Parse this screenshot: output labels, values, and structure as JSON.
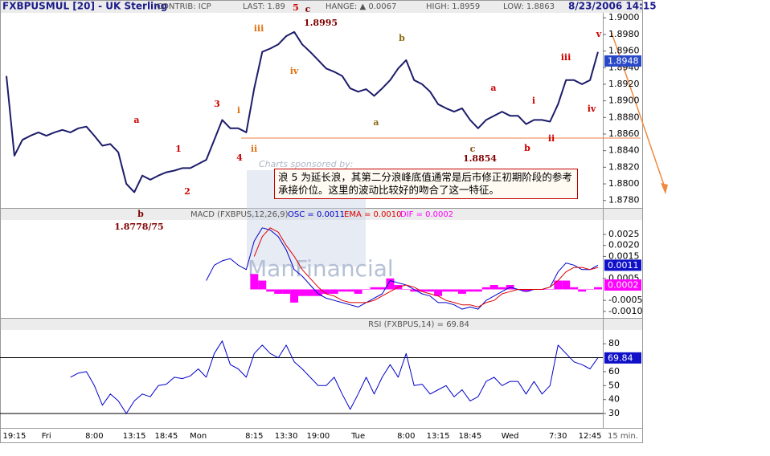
{
  "chart_data": [
    {
      "type": "line",
      "title": "FXBPUSMUL [20] - UK Sterling",
      "header": [
        "CONTRIB: ICP",
        "LAST: 1.89",
        "HANGE: ▲ 0.0067",
        "HIGH: 1.8959",
        "LOW: 1.8863",
        "8/23/2006 14:15"
      ],
      "color": "#1c1c6b",
      "values": [
        1.893,
        1.8834,
        1.8853,
        1.8858,
        1.8862,
        1.8858,
        1.8862,
        1.8865,
        1.8862,
        1.8867,
        1.8869,
        1.8858,
        1.8846,
        1.8848,
        1.8838,
        1.88,
        1.879,
        1.881,
        1.8805,
        1.881,
        1.8814,
        1.8816,
        1.8819,
        1.8819,
        1.8824,
        1.8829,
        1.8853,
        1.8877,
        1.8867,
        1.8867,
        1.8862,
        1.8915,
        1.8959,
        1.8963,
        1.8968,
        1.8978,
        1.8983,
        1.8968,
        1.8959,
        1.8949,
        1.8939,
        1.8935,
        1.893,
        1.8915,
        1.8911,
        1.8914,
        1.8906,
        1.8915,
        1.8925,
        1.8939,
        1.8949,
        1.8925,
        1.892,
        1.8911,
        1.8896,
        1.8891,
        1.8887,
        1.8891,
        1.8877,
        1.8867,
        1.8877,
        1.8882,
        1.8887,
        1.8882,
        1.8882,
        1.8872,
        1.8877,
        1.8877,
        1.8875,
        1.8896,
        1.8925,
        1.8925,
        1.892,
        1.8925,
        1.8959
      ],
      "current": 1.8948,
      "current_color": "#2848c8",
      "ylim": [
        1.8772,
        1.9006
      ],
      "yticks": [
        {
          "value": 1.9,
          "label": "1.9000"
        },
        {
          "value": 1.898,
          "label": "1.8980"
        },
        {
          "value": 1.896,
          "label": "1.8960"
        },
        {
          "value": 1.894,
          "label": "1.8940"
        },
        {
          "value": 1.892,
          "label": "1.8920"
        },
        {
          "value": 1.89,
          "label": "1.8900"
        },
        {
          "value": 1.888,
          "label": "1.8880"
        },
        {
          "value": 1.886,
          "label": "1.8860"
        },
        {
          "value": 1.884,
          "label": "1.8840"
        },
        {
          "value": 1.882,
          "label": "1.8820"
        },
        {
          "value": 1.88,
          "label": "1.8800"
        },
        {
          "value": 1.878,
          "label": "1.8780"
        }
      ],
      "annotations": [
        {
          "text": "a",
          "color": "#cc0000"
        },
        {
          "text": "b",
          "color": "#800000"
        },
        {
          "text": "1.8778/75",
          "color": "#800000"
        },
        {
          "text": "1",
          "color": "#cc0000"
        },
        {
          "text": "2",
          "color": "#cc0000"
        },
        {
          "text": "3",
          "color": "#cc0000"
        },
        {
          "text": "4",
          "color": "#cc0000"
        },
        {
          "text": "i",
          "color": "#e07010"
        },
        {
          "text": "ii",
          "color": "#e07010"
        },
        {
          "text": "iii",
          "color": "#e07010"
        },
        {
          "text": "iv",
          "color": "#e07010"
        },
        {
          "text": "5",
          "color": "#cc0000"
        },
        {
          "text": "c",
          "color": "#800000"
        },
        {
          "text": "1.8995",
          "color": "#800000"
        },
        {
          "text": "b",
          "color": "#8a6a10"
        },
        {
          "text": "a",
          "color": "#8a6a10"
        },
        {
          "text": "a",
          "color": "#cc0000"
        },
        {
          "text": "c",
          "color": "#8a4a10"
        },
        {
          "text": "1.8854",
          "color": "#800000"
        },
        {
          "text": "i",
          "color": "#cc0000"
        },
        {
          "text": "b",
          "color": "#cc0000"
        },
        {
          "text": "ii",
          "color": "#cc0000"
        },
        {
          "text": "iii",
          "color": "#cc0000"
        },
        {
          "text": "iv",
          "color": "#cc0000"
        },
        {
          "text": "v",
          "color": "#cc0000"
        }
      ],
      "note": "浪 5 为延长浪，其第二分浪峰底值通常是后市修正初期阶段的参考承接价位。这里的波动比较好的吻合了这一特征。",
      "watermark": [
        "Charts sponsored by:",
        "ManFinancial"
      ]
    },
    {
      "type": "line",
      "title": "MACD (FXBPUS,12,26,9)",
      "series": [
        {
          "name": "OSC = 0.0011",
          "color": "#0000cc",
          "current": 0.0011,
          "values": [
            null,
            null,
            null,
            null,
            null,
            null,
            null,
            null,
            null,
            null,
            null,
            null,
            null,
            null,
            null,
            null,
            null,
            null,
            null,
            null,
            null,
            null,
            null,
            null,
            null,
            0.0004,
            0.0011,
            0.0013,
            0.0014,
            0.0011,
            0.0009,
            0.0022,
            0.0028,
            0.0027,
            0.0024,
            0.0018,
            0.0009,
            0.0006,
            0.0002,
            -0.0002,
            -0.0004,
            -0.0005,
            -0.0006,
            -0.0007,
            -0.0008,
            -0.0006,
            -0.0004,
            -0.0002,
            0.0004,
            0.0003,
            0.0002,
            0,
            -0.0002,
            -0.0003,
            -0.0006,
            -0.0006,
            -0.0007,
            -0.0009,
            -0.0008,
            -0.0009,
            -0.0005,
            -0.0003,
            -0.0001,
            0.0001,
            0,
            -0.0001,
            0,
            0,
            0.0001,
            0.0008,
            0.0012,
            0.0011,
            0.0009,
            0.0009,
            0.0011
          ]
        },
        {
          "name": "EMA = 0.0010",
          "color": "#dd0000",
          "values": [
            null,
            null,
            null,
            null,
            null,
            null,
            null,
            null,
            null,
            null,
            null,
            null,
            null,
            null,
            null,
            null,
            null,
            null,
            null,
            null,
            null,
            null,
            null,
            null,
            null,
            null,
            null,
            null,
            null,
            null,
            null,
            0.0015,
            0.0024,
            0.0028,
            0.0026,
            0.002,
            0.0015,
            0.0009,
            0.0005,
            0.0001,
            -0.0002,
            -0.0003,
            -0.0005,
            -0.0006,
            -0.0006,
            -0.0006,
            -0.0005,
            -0.0003,
            -0.0001,
            0.0001,
            0.0002,
            0.0001,
            -0.0001,
            -0.0002,
            -0.0003,
            -0.0005,
            -0.0006,
            -0.0007,
            -0.0007,
            -0.0008,
            -0.0006,
            -0.0005,
            -0.0002,
            -0.0001,
            0,
            0,
            0,
            0,
            0.0001,
            0.0004,
            0.0008,
            0.001,
            0.001,
            0.0009,
            0.001
          ]
        },
        {
          "name": "DIF = 0.0002",
          "color": "#ff00ff",
          "style": "histogram",
          "current": 0.0002,
          "values": [
            null,
            null,
            null,
            null,
            null,
            null,
            null,
            null,
            null,
            null,
            null,
            null,
            null,
            null,
            null,
            null,
            null,
            null,
            null,
            null,
            null,
            null,
            null,
            null,
            null,
            null,
            null,
            null,
            null,
            null,
            null,
            0.0007,
            0.0004,
            -0.0001,
            -0.0002,
            -0.0002,
            -0.0006,
            -0.0003,
            -0.0003,
            -0.0003,
            -0.0002,
            -0.0002,
            -0.0001,
            -0.0001,
            -0.0002,
            0,
            0.0001,
            0.0001,
            0.0005,
            0.0002,
            0,
            -0.0001,
            -0.0001,
            -0.0001,
            -0.0003,
            -0.0001,
            -0.0001,
            -0.0002,
            -0.0001,
            -0.0001,
            0.0001,
            0.0002,
            0.0001,
            0.0002,
            0,
            -0.0001,
            0,
            0,
            0,
            0.0004,
            0.0004,
            0.0001,
            -0.0001,
            0,
            0.0001
          ]
        }
      ],
      "ylim": [
        -0.00126,
        0.00312
      ],
      "yticks": [
        {
          "value": 0.0025,
          "label": "0.0025"
        },
        {
          "value": 0.002,
          "label": "0.0020"
        },
        {
          "value": 0.0015,
          "label": "0.0015"
        },
        {
          "value": 0.0005,
          "label": "0.0005"
        },
        {
          "value": -0.0005,
          "label": "-0.0005"
        },
        {
          "value": -0.001,
          "label": "-0.0010"
        }
      ]
    },
    {
      "type": "line",
      "title": "RSI (FXBPUS,14) = 69.84",
      "series": [
        {
          "color": "#0000cc",
          "current": 69.84,
          "values": [
            null,
            null,
            null,
            null,
            null,
            null,
            null,
            null,
            56,
            59,
            60,
            50,
            36,
            44,
            39,
            30,
            39,
            44,
            42,
            50,
            51,
            56,
            55,
            57,
            62,
            56,
            73,
            82,
            65,
            62,
            56,
            73,
            79,
            73,
            70,
            79,
            67,
            62,
            56,
            50,
            50,
            56,
            44,
            33,
            44,
            56,
            44,
            56,
            65,
            56,
            73,
            50,
            51,
            44,
            47,
            50,
            42,
            47,
            39,
            42,
            53,
            56,
            50,
            53,
            53,
            44,
            53,
            44,
            50,
            79,
            73,
            67,
            65,
            62,
            70
          ]
        }
      ],
      "ref_lines": [
        70,
        30
      ],
      "ylim": [
        19.7,
        89.3
      ],
      "yticks": [
        80,
        60,
        50,
        40,
        30
      ],
      "categories": [
        null,
        "19:15",
        null,
        null,
        null,
        "Fri",
        null,
        null,
        null,
        null,
        null,
        "8:00",
        null,
        null,
        null,
        null,
        "13:15",
        null,
        null,
        null,
        "18:45",
        null,
        null,
        null,
        "Mon",
        null,
        null,
        null,
        null,
        null,
        null,
        "8:15",
        null,
        null,
        null,
        "13:30",
        null,
        null,
        null,
        "19:00",
        null,
        null,
        null,
        null,
        "Tue",
        null,
        null,
        null,
        null,
        null,
        "8:00",
        null,
        null,
        null,
        "13:15",
        null,
        null,
        null,
        "18:45",
        null,
        null,
        null,
        null,
        "Wed",
        null,
        null,
        null,
        null,
        null,
        "7:30",
        null,
        null,
        null,
        "12:45",
        null
      ],
      "x_unit": "15 min."
    }
  ]
}
